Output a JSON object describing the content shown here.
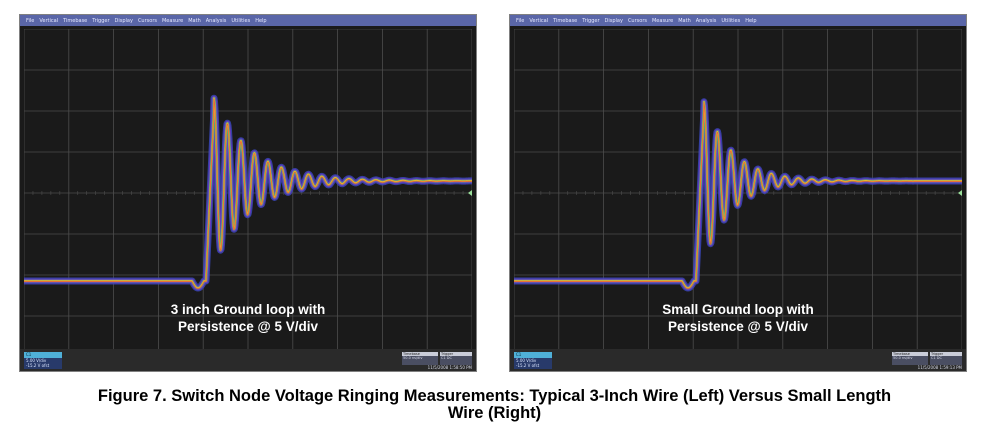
{
  "menu_items": [
    "File",
    "Vertical",
    "Timebase",
    "Trigger",
    "Display",
    "Cursors",
    "Measure",
    "Math",
    "Analysis",
    "Utilities",
    "Help"
  ],
  "colors": {
    "screen_bg": "#1a1a1a",
    "grid": "#4d4d4d",
    "menubar": "#5a66a8",
    "trace_outer": "#3a46b8",
    "trace_mid": "#7a3ac8",
    "trace_green": "#49c16a",
    "trace_core": "#f0b32c",
    "trace_hot": "#e9533a"
  },
  "scopes": [
    {
      "overlay_line1": "3 inch Ground loop with",
      "overlay_line2": "Persistence @ 5 V/div",
      "timestamp": "11/5/2008 1:58:50 PM",
      "waveform": {
        "ringing_decay": 0.16,
        "ringing_amplitude": 1.15,
        "cycles": 15
      }
    },
    {
      "overlay_line1": "Small Ground loop with",
      "overlay_line2": "Persistence @ 5 V/div",
      "timestamp": "11/5/2008 1:59:13 PM",
      "waveform": {
        "ringing_decay": 0.21,
        "ringing_amplitude": 1.1,
        "cycles": 13
      }
    }
  ],
  "caption": {
    "line1": "Figure 7. Switch Node Voltage Ringing Measurements: Typical 3-Inch Wire (Left) Versus Small Length",
    "line2": "Wire (Right)"
  }
}
